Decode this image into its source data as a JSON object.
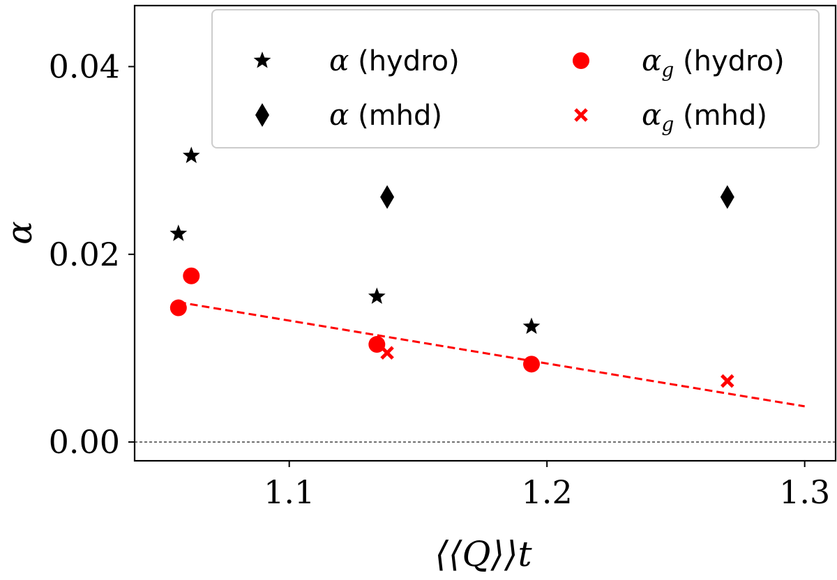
{
  "chart_data": {
    "type": "scatter",
    "xlabel": "⟨⟨Q⟩⟩t",
    "ylabel": "α",
    "xlim": [
      1.04,
      1.312
    ],
    "ylim": [
      -0.002,
      0.0465
    ],
    "xticks": [
      1.1,
      1.2,
      1.3
    ],
    "xtick_labels": [
      "1.1",
      "1.2",
      "1.3"
    ],
    "yticks": [
      0.0,
      0.02,
      0.04
    ],
    "ytick_labels": [
      "0.00",
      "0.02",
      "0.04"
    ],
    "legend_placement": "top-right",
    "legend_columns": 2,
    "series": [
      {
        "name": "α (hydro)",
        "marker": "star",
        "color": "#000000",
        "x": [
          1.057,
          1.062,
          1.134,
          1.194
        ],
        "y": [
          0.0222,
          0.0305,
          0.0155,
          0.0123
        ]
      },
      {
        "name": "α (mhd)",
        "marker": "diamond",
        "color": "#000000",
        "x": [
          1.138,
          1.27
        ],
        "y": [
          0.0261,
          0.0261
        ]
      },
      {
        "name": "αg (hydro)",
        "marker": "circle",
        "color": "#ff0000",
        "x": [
          1.057,
          1.062,
          1.134,
          1.194
        ],
        "y": [
          0.0143,
          0.0177,
          0.0104,
          0.0083
        ]
      },
      {
        "name": "αg (mhd)",
        "marker": "x",
        "color": "#ff0000",
        "x": [
          1.138,
          1.27
        ],
        "y": [
          0.0095,
          0.0065
        ]
      }
    ],
    "lines": [
      {
        "style": "dashed",
        "color": "#ff0000",
        "x": [
          1.057,
          1.3
        ],
        "y": [
          0.0149,
          0.0038
        ]
      },
      {
        "style": "dashed",
        "color": "#000000",
        "y_const": 0.0
      }
    ],
    "legend": {
      "entries": [
        {
          "marker": "star",
          "color": "#000000",
          "sym": "α",
          "sub": "",
          "rest": " (hydro)"
        },
        {
          "marker": "circle",
          "color": "#ff0000",
          "sym": "α",
          "sub": "g",
          "rest": " (hydro)"
        },
        {
          "marker": "diamond",
          "color": "#000000",
          "sym": "α",
          "sub": "",
          "rest": " (mhd)"
        },
        {
          "marker": "x",
          "color": "#ff0000",
          "sym": "α",
          "sub": "g",
          "rest": " (mhd)"
        }
      ]
    }
  }
}
